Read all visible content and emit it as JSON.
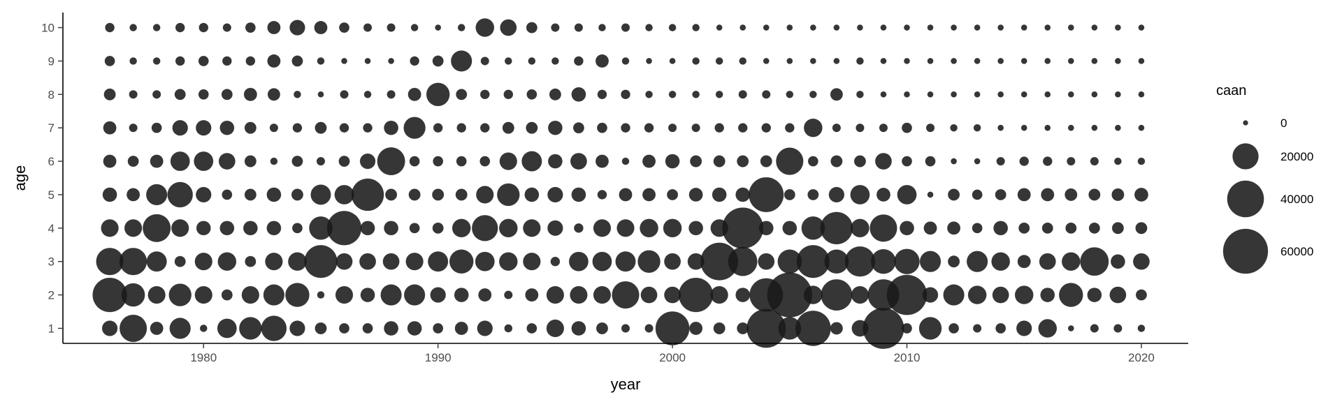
{
  "chart_data": {
    "type": "scatter",
    "subtype": "bubble",
    "xlabel": "year",
    "ylabel": "age",
    "size_label": "caan",
    "xlim": [
      1974,
      2022
    ],
    "ylim": [
      0.55,
      10.45
    ],
    "x_ticks": [
      1980,
      1990,
      2000,
      2010,
      2020
    ],
    "y_ticks": [
      1,
      2,
      3,
      4,
      5,
      6,
      7,
      8,
      9,
      10
    ],
    "legend": {
      "title": "caan",
      "placement": "right",
      "entries": [
        {
          "label": "0",
          "value": 0
        },
        {
          "label": "20000",
          "value": 20000
        },
        {
          "label": "40000",
          "value": 40000
        },
        {
          "label": "60000",
          "value": 60000
        }
      ]
    },
    "marker_color": "#1a1a1a",
    "marker_opacity": 0.88,
    "grid": false,
    "years": [
      1976,
      1977,
      1978,
      1979,
      1980,
      1981,
      1982,
      1983,
      1984,
      1985,
      1986,
      1987,
      1988,
      1989,
      1990,
      1991,
      1992,
      1993,
      1994,
      1995,
      1996,
      1997,
      1998,
      1999,
      2000,
      2001,
      2002,
      2003,
      2004,
      2005,
      2006,
      2007,
      2008,
      2009,
      2010,
      2011,
      2012,
      2013,
      2014,
      2015,
      2016,
      2017,
      2018,
      2019,
      2020
    ],
    "ages": [
      1,
      2,
      3,
      4,
      5,
      6,
      7,
      8,
      9,
      10
    ],
    "caan_by_age": {
      "1": [
        7000,
        22000,
        5000,
        13000,
        1500,
        11000,
        15000,
        19000,
        7000,
        4000,
        3000,
        3000,
        6000,
        6000,
        3000,
        5000,
        7000,
        1800,
        3000,
        9000,
        6000,
        4000,
        2000,
        2000,
        34000,
        5000,
        4000,
        4000,
        45000,
        15000,
        37000,
        4500,
        8000,
        50000,
        3000,
        15000,
        3000,
        2000,
        3000,
        7000,
        10000,
        1000,
        2000,
        2000,
        1500
      ],
      "2": [
        35000,
        16000,
        9000,
        15000,
        9000,
        3500,
        9000,
        13000,
        17000,
        1500,
        9000,
        6000,
        13000,
        13000,
        7000,
        6000,
        5000,
        2000,
        5000,
        9000,
        9000,
        9000,
        22000,
        8000,
        8000,
        35000,
        9000,
        6000,
        33000,
        60000,
        10000,
        29000,
        9000,
        29000,
        48000,
        7000,
        13000,
        10000,
        8000,
        10000,
        6000,
        17000,
        6000,
        8000,
        3500
      ],
      "3": [
        22000,
        22000,
        12000,
        3500,
        9000,
        10000,
        3500,
        9000,
        10000,
        32000,
        8000,
        8000,
        8000,
        9000,
        12000,
        17000,
        11000,
        10000,
        9000,
        2500,
        11000,
        11000,
        12000,
        15000,
        8000,
        8000,
        42000,
        25000,
        8000,
        17000,
        32000,
        17000,
        27000,
        18000,
        19000,
        13000,
        4000,
        13000,
        10000,
        5000,
        8000,
        10000,
        24000,
        6000,
        8000
      ],
      "4": [
        9000,
        9000,
        23000,
        9000,
        6000,
        6000,
        6000,
        6000,
        3000,
        16000,
        35000,
        6000,
        6000,
        3000,
        3500,
        10000,
        20000,
        10000,
        9000,
        7000,
        2500,
        9000,
        9000,
        10000,
        10000,
        6000,
        9000,
        50000,
        6000,
        6000,
        16000,
        31000,
        10000,
        22000,
        6000,
        5000,
        5000,
        3000,
        6000,
        3500,
        3500,
        3500,
        3500,
        4000,
        4000
      ],
      "5": [
        6000,
        5000,
        13000,
        19000,
        7000,
        3000,
        4000,
        6000,
        4000,
        12000,
        11000,
        31000,
        4000,
        4000,
        4000,
        4000,
        9000,
        15000,
        6000,
        7000,
        6000,
        2500,
        5000,
        5000,
        3500,
        5500,
        6000,
        6000,
        36000,
        3500,
        3500,
        7000,
        11000,
        5500,
        11000,
        1000,
        4000,
        3000,
        3500,
        5000,
        5000,
        4500,
        4000,
        4500,
        5500
      ],
      "6": [
        5000,
        3500,
        5000,
        11000,
        11000,
        8000,
        4000,
        1500,
        3500,
        2000,
        3500,
        7000,
        23000,
        3000,
        3000,
        3000,
        3000,
        9000,
        12000,
        6000,
        8000,
        5000,
        1500,
        5000,
        6000,
        4000,
        4000,
        4000,
        4000,
        22000,
        3000,
        4000,
        4000,
        8000,
        3000,
        3000,
        1000,
        1000,
        2000,
        2500,
        2500,
        2000,
        2000,
        1500,
        1500
      ],
      "7": [
        5000,
        2000,
        3000,
        7000,
        7000,
        6000,
        4000,
        2000,
        2500,
        4000,
        2500,
        2500,
        6000,
        14000,
        2500,
        2500,
        2500,
        4000,
        4000,
        6000,
        3500,
        3000,
        2500,
        2500,
        2000,
        2000,
        2500,
        2500,
        2500,
        2500,
        10000,
        2000,
        2000,
        2000,
        3000,
        2000,
        1500,
        1500,
        1000,
        1000,
        1000,
        1000,
        1000,
        1000,
        1000
      ],
      "8": [
        4000,
        2000,
        2000,
        3500,
        3000,
        3500,
        5000,
        4500,
        1500,
        1000,
        2000,
        1500,
        2000,
        5000,
        16000,
        3500,
        2500,
        2500,
        3000,
        4000,
        6000,
        2500,
        2500,
        1500,
        1500,
        1500,
        1500,
        2000,
        2000,
        1500,
        1500,
        4500,
        1500,
        1000,
        1000,
        1000,
        1000,
        1000,
        1000,
        1000,
        1000,
        1000,
        1000,
        1000,
        1000
      ],
      "9": [
        3000,
        1500,
        1500,
        2500,
        3000,
        2500,
        2500,
        5000,
        3500,
        1500,
        1000,
        1000,
        1000,
        2500,
        3500,
        13000,
        2000,
        1500,
        1500,
        1500,
        2500,
        5000,
        1500,
        1000,
        1000,
        1500,
        1500,
        1500,
        1000,
        1000,
        1000,
        1000,
        1500,
        1000,
        1000,
        1000,
        1000,
        1000,
        1000,
        1000,
        1000,
        1000,
        1000,
        1000,
        1000
      ],
      "10": [
        2500,
        1500,
        1500,
        2500,
        2500,
        2000,
        3000,
        5000,
        7000,
        5000,
        3000,
        2000,
        2000,
        1500,
        1000,
        1500,
        10000,
        8000,
        3500,
        2000,
        2000,
        1500,
        2000,
        1500,
        1500,
        1500,
        1000,
        1000,
        1000,
        1000,
        1000,
        1000,
        1000,
        1000,
        1000,
        1000,
        1000,
        1000,
        1000,
        1000,
        1000,
        1000,
        1000,
        1000,
        1000
      ]
    }
  }
}
